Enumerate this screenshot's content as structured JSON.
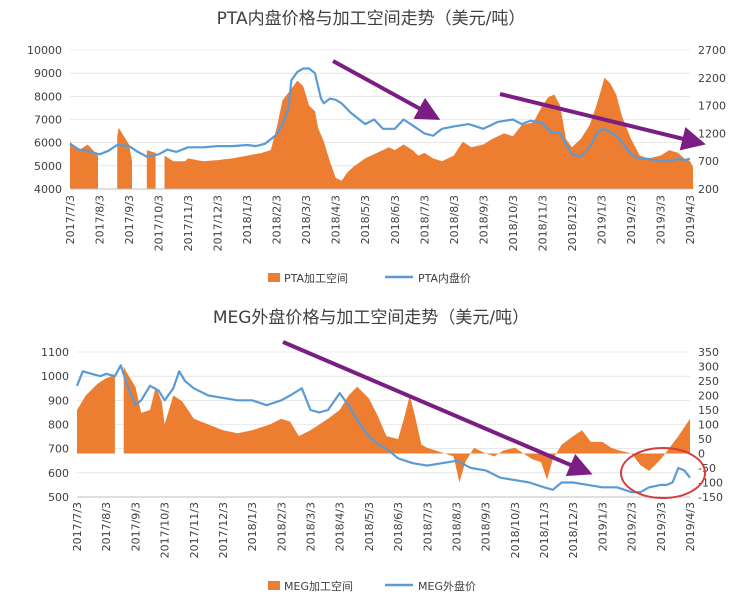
{
  "colors": {
    "area": "#ED7D31",
    "line": "#5B9BD5",
    "arrow": "#7B1E84",
    "circle": "#D93A3A",
    "grid": "#D9D9D9",
    "axis": "#BFBFBF"
  },
  "chart_data": [
    {
      "type": "area",
      "title": "PTA内盘价格与加工空间走势（美元/吨）",
      "ylim": [
        4000,
        10000
      ],
      "yticks": [
        "4000",
        "5000",
        "6000",
        "7000",
        "8000",
        "9000",
        "10000"
      ],
      "y2lim": [
        200,
        2700
      ],
      "y2ticks": [
        "200",
        "700",
        "1200",
        "1700",
        "2200",
        "2700"
      ],
      "xticks": [
        "2017/7/3",
        "2017/8/3",
        "2017/9/3",
        "2017/10/3",
        "2017/11/3",
        "2017/12/3",
        "2018/1/3",
        "2018/2/3",
        "2018/3/3",
        "2018/4/3",
        "2018/5/3",
        "2018/6/3",
        "2018/7/3",
        "2018/8/3",
        "2018/9/3",
        "2018/10/3",
        "2018/11/3",
        "2018/12/3",
        "2019/1/3",
        "2019/2/3",
        "2019/3/3",
        "2019/4/3"
      ],
      "legend_position": "bottom",
      "series": [
        {
          "name": "PTA加工空间",
          "axis": "right",
          "kind": "area",
          "x": [
            0,
            0.3,
            0.6,
            0.95,
            1.15,
            1.6,
            1.65,
            2.0,
            2.1,
            2.3,
            2.6,
            2.9,
            3.0,
            3.2,
            3.5,
            3.9,
            4.0,
            4.5,
            5.0,
            5.5,
            6.0,
            6.5,
            6.8,
            7.0,
            7.2,
            7.5,
            7.7,
            7.9,
            8.1,
            8.3,
            8.4,
            8.6,
            8.8,
            9.0,
            9.2,
            9.4,
            9.6,
            10.0,
            10.4,
            10.8,
            11.0,
            11.3,
            11.6,
            11.8,
            12.0,
            12.3,
            12.6,
            13.0,
            13.3,
            13.6,
            14.0,
            14.3,
            14.7,
            15.0,
            15.3,
            15.7,
            16.0,
            16.2,
            16.4,
            16.6,
            16.8,
            17.0,
            17.3,
            17.6,
            17.8,
            18.0,
            18.1,
            18.3,
            18.5,
            18.7,
            19.0,
            19.3,
            19.6,
            20.0,
            20.3,
            20.6,
            20.8,
            21.0,
            21.1
          ],
          "values": [
            1050,
            900,
            1000,
            800,
            null,
            1150,
            1300,
            1000,
            700,
            null,
            900,
            850,
            null,
            800,
            700,
            700,
            750,
            700,
            720,
            750,
            800,
            850,
            900,
            1300,
            1800,
            2000,
            2150,
            2050,
            1700,
            1600,
            1300,
            1050,
            700,
            400,
            350,
            500,
            600,
            750,
            850,
            950,
            900,
            1000,
            900,
            800,
            850,
            750,
            700,
            800,
            1050,
            950,
            1000,
            1100,
            1200,
            1150,
            1350,
            1400,
            1700,
            1850,
            1900,
            1700,
            1100,
            950,
            1100,
            1350,
            1650,
            2000,
            2200,
            2100,
            1900,
            1500,
            1100,
            800,
            750,
            800,
            900,
            850,
            750,
            700,
            600
          ],
          "values_unit": "美元/吨"
        },
        {
          "name": "PTA内盘价",
          "axis": "left",
          "kind": "line",
          "x": [
            0,
            0.3,
            0.7,
            1.0,
            1.3,
            1.6,
            2.0,
            2.3,
            2.6,
            3.0,
            3.3,
            3.6,
            4.0,
            4.5,
            5.0,
            5.5,
            6.0,
            6.3,
            6.6,
            7.0,
            7.2,
            7.4,
            7.5,
            7.7,
            7.9,
            8.1,
            8.3,
            8.5,
            8.6,
            8.8,
            9.0,
            9.2,
            9.5,
            9.8,
            10.0,
            10.3,
            10.6,
            11.0,
            11.3,
            11.6,
            12.0,
            12.3,
            12.6,
            13.0,
            13.5,
            14.0,
            14.5,
            15.0,
            15.3,
            15.6,
            16.0,
            16.3,
            16.6,
            17.0,
            17.3,
            17.6,
            17.9,
            18.1,
            18.3,
            18.6,
            19.0,
            19.3,
            19.6,
            20.0,
            20.3,
            20.6,
            20.8,
            21.0
          ],
          "values": [
            5950,
            5700,
            5600,
            5500,
            5650,
            5900,
            5850,
            5600,
            5400,
            5500,
            5700,
            5600,
            5800,
            5800,
            5850,
            5850,
            5900,
            5850,
            5950,
            6350,
            6800,
            7500,
            8700,
            9050,
            9200,
            9200,
            9000,
            7900,
            7700,
            7900,
            7850,
            7700,
            7300,
            7000,
            6800,
            7000,
            6600,
            6600,
            7000,
            6750,
            6400,
            6300,
            6600,
            6700,
            6800,
            6600,
            6900,
            7000,
            6800,
            6950,
            6850,
            6450,
            6400,
            5500,
            5400,
            5800,
            6500,
            6600,
            6450,
            6200,
            5500,
            5300,
            5300,
            5200,
            5200,
            5300,
            5250,
            5300
          ]
        }
      ],
      "annotations": [
        "arrow-1",
        "arrow-2"
      ]
    },
    {
      "type": "area",
      "title": "MEG外盘价格与加工空间走势（美元/吨）",
      "ylim": [
        500,
        1100
      ],
      "yticks": [
        "500",
        "600",
        "700",
        "800",
        "900",
        "1000",
        "1100"
      ],
      "y2lim": [
        -150,
        350
      ],
      "y2ticks": [
        "-150",
        "-100",
        "-50",
        "0",
        "50",
        "100",
        "150",
        "200",
        "250",
        "300",
        "350"
      ],
      "xticks": [
        "2017/7/3",
        "2017/8/3",
        "2017/9/3",
        "2017/10/3",
        "2017/11/3",
        "2017/12/3",
        "2018/1/3",
        "2018/2/3",
        "2018/3/3",
        "2018/4/3",
        "2018/5/3",
        "2018/6/3",
        "2018/7/3",
        "2018/8/3",
        "2018/9/3",
        "2018/10/3",
        "2018/11/3",
        "2018/12/3",
        "2019/1/3",
        "2019/2/3",
        "2019/3/3",
        "2019/4/3"
      ],
      "legend_position": "bottom",
      "series": [
        {
          "name": "MEG加工空间",
          "axis": "right",
          "kind": "area",
          "x": [
            0,
            0.3,
            0.7,
            1.0,
            1.3,
            1.45,
            1.6,
            1.7,
            2.0,
            2.2,
            2.5,
            2.7,
            2.9,
            3.0,
            3.3,
            3.6,
            4.0,
            4.5,
            5.0,
            5.5,
            6.0,
            6.3,
            6.6,
            7.0,
            7.3,
            7.6,
            8.0,
            8.3,
            8.6,
            9.0,
            9.3,
            9.6,
            10.0,
            10.3,
            10.6,
            11.0,
            11.2,
            11.4,
            11.6,
            11.8,
            12.0,
            12.3,
            12.6,
            12.9,
            13.1,
            13.3,
            13.6,
            14.0,
            14.3,
            14.6,
            15.0,
            15.3,
            15.6,
            15.9,
            16.1,
            16.3,
            16.6,
            17.0,
            17.3,
            17.6,
            18.0,
            18.3,
            18.6,
            19.0,
            19.3,
            19.6,
            20.0,
            20.3,
            20.6,
            20.8,
            21.0
          ],
          "values": [
            150,
            200,
            240,
            260,
            270,
            null,
            300,
            280,
            230,
            140,
            150,
            230,
            180,
            100,
            200,
            180,
            120,
            100,
            80,
            70,
            80,
            90,
            100,
            120,
            110,
            60,
            80,
            100,
            120,
            150,
            200,
            230,
            190,
            130,
            60,
            50,
            120,
            200,
            120,
            30,
            20,
            10,
            0,
            -10,
            -100,
            -30,
            20,
            0,
            -10,
            10,
            20,
            0,
            -20,
            -30,
            -90,
            -20,
            30,
            60,
            80,
            40,
            40,
            20,
            10,
            0,
            -40,
            -60,
            -20,
            20,
            60,
            90,
            120
          ]
        },
        {
          "name": "MEG外盘价",
          "axis": "left",
          "kind": "line",
          "x": [
            0,
            0.2,
            0.5,
            0.8,
            1.0,
            1.3,
            1.5,
            1.7,
            2.0,
            2.2,
            2.5,
            2.8,
            3.0,
            3.3,
            3.5,
            3.7,
            4.0,
            4.5,
            5.0,
            5.5,
            6.0,
            6.5,
            7.0,
            7.3,
            7.7,
            8.0,
            8.3,
            8.6,
            9.0,
            9.3,
            9.6,
            10.0,
            10.3,
            10.6,
            11.0,
            11.5,
            12.0,
            12.5,
            13.0,
            13.5,
            14.0,
            14.5,
            15.0,
            15.5,
            16.0,
            16.3,
            16.6,
            17.0,
            17.5,
            18.0,
            18.5,
            19.0,
            19.3,
            19.6,
            20.0,
            20.2,
            20.4,
            20.6,
            20.8,
            21.0
          ],
          "values": [
            960,
            1020,
            1010,
            1000,
            1010,
            1000,
            1045,
            970,
            880,
            900,
            960,
            940,
            900,
            950,
            1020,
            980,
            950,
            920,
            910,
            900,
            900,
            880,
            900,
            920,
            950,
            860,
            850,
            860,
            930,
            880,
            820,
            750,
            720,
            700,
            660,
            640,
            630,
            640,
            650,
            620,
            610,
            580,
            570,
            560,
            540,
            530,
            560,
            560,
            550,
            540,
            540,
            520,
            520,
            540,
            550,
            550,
            560,
            620,
            610,
            580
          ]
        }
      ],
      "annotations": [
        "arrow-1",
        "circle-1"
      ]
    }
  ]
}
